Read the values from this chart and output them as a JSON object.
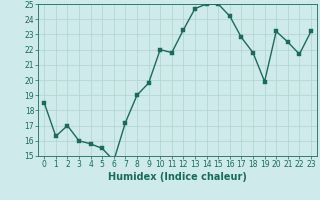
{
  "xlabel": "Humidex (Indice chaleur)",
  "ylabel": "",
  "x": [
    0,
    1,
    2,
    3,
    4,
    5,
    6,
    7,
    8,
    9,
    10,
    11,
    12,
    13,
    14,
    15,
    16,
    17,
    18,
    19,
    20,
    21,
    22,
    23
  ],
  "y": [
    18.5,
    16.3,
    17.0,
    16.0,
    15.8,
    15.5,
    14.7,
    17.2,
    19.0,
    19.8,
    22.0,
    21.8,
    23.3,
    24.7,
    25.0,
    25.0,
    24.2,
    22.8,
    21.8,
    19.9,
    23.2,
    22.5,
    21.7,
    23.2
  ],
  "line_color": "#1a6b5e",
  "marker_color": "#1a6b5e",
  "bg_color": "#ceeaea",
  "grid_color": "#aed4d0",
  "ylim": [
    15,
    25
  ],
  "yticks": [
    15,
    16,
    17,
    18,
    19,
    20,
    21,
    22,
    23,
    24,
    25
  ],
  "xticks": [
    0,
    1,
    2,
    3,
    4,
    5,
    6,
    7,
    8,
    9,
    10,
    11,
    12,
    13,
    14,
    15,
    16,
    17,
    18,
    19,
    20,
    21,
    22,
    23
  ],
  "tick_label_fontsize": 5.5,
  "xlabel_fontsize": 7,
  "marker_size": 2.2,
  "line_width": 1.0
}
